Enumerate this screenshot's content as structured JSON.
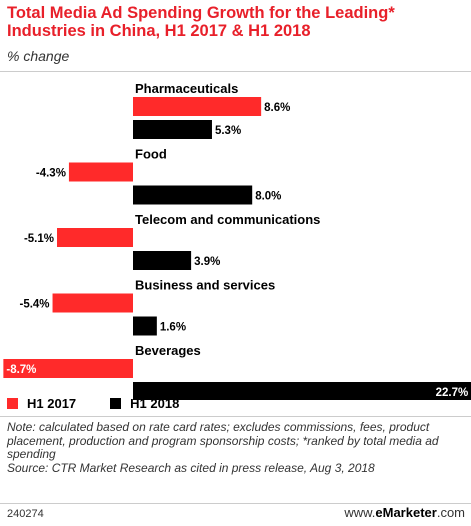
{
  "header": {
    "title": "Total Media Ad Spending Growth for the Leading* Industries in China, H1 2017 & H1 2018",
    "subtitle": "% change"
  },
  "colors": {
    "h1_2017": "#ff2a2a",
    "h1_2018": "#000000",
    "title": "#e8202a"
  },
  "chart_data": {
    "type": "bar",
    "orientation": "horizontal",
    "categories": [
      "Pharmaceuticals",
      "Food",
      "Telecom and communications",
      "Business and services",
      "Beverages"
    ],
    "series": [
      {
        "name": "H1 2017",
        "values": [
          8.6,
          -4.3,
          -5.1,
          -5.4,
          -8.7
        ],
        "labels": [
          "8.6%",
          "-4.3%",
          "-5.1%",
          "-5.4%",
          "-8.7%"
        ]
      },
      {
        "name": "H1 2018",
        "values": [
          5.3,
          8.0,
          3.9,
          1.6,
          22.7
        ],
        "labels": [
          "5.3%",
          "8.0%",
          "3.9%",
          "1.6%",
          "22.7%"
        ]
      }
    ],
    "grid": false,
    "legend_position": "bottom-left"
  },
  "legend": {
    "h1_2017": "H1 2017",
    "h1_2018": "H1 2018"
  },
  "footnote": {
    "note": "Note: calculated based on rate card rates; excludes commissions, fees, product placement, production and program sponsorship costs; *ranked by total media ad spending",
    "source": "Source: CTR Market Research as cited in press release, Aug 3, 2018"
  },
  "footer": {
    "chart_id": "240274",
    "brand_prefix": "www.",
    "brand_name": "eMarketer",
    "brand_suffix": ".com"
  }
}
